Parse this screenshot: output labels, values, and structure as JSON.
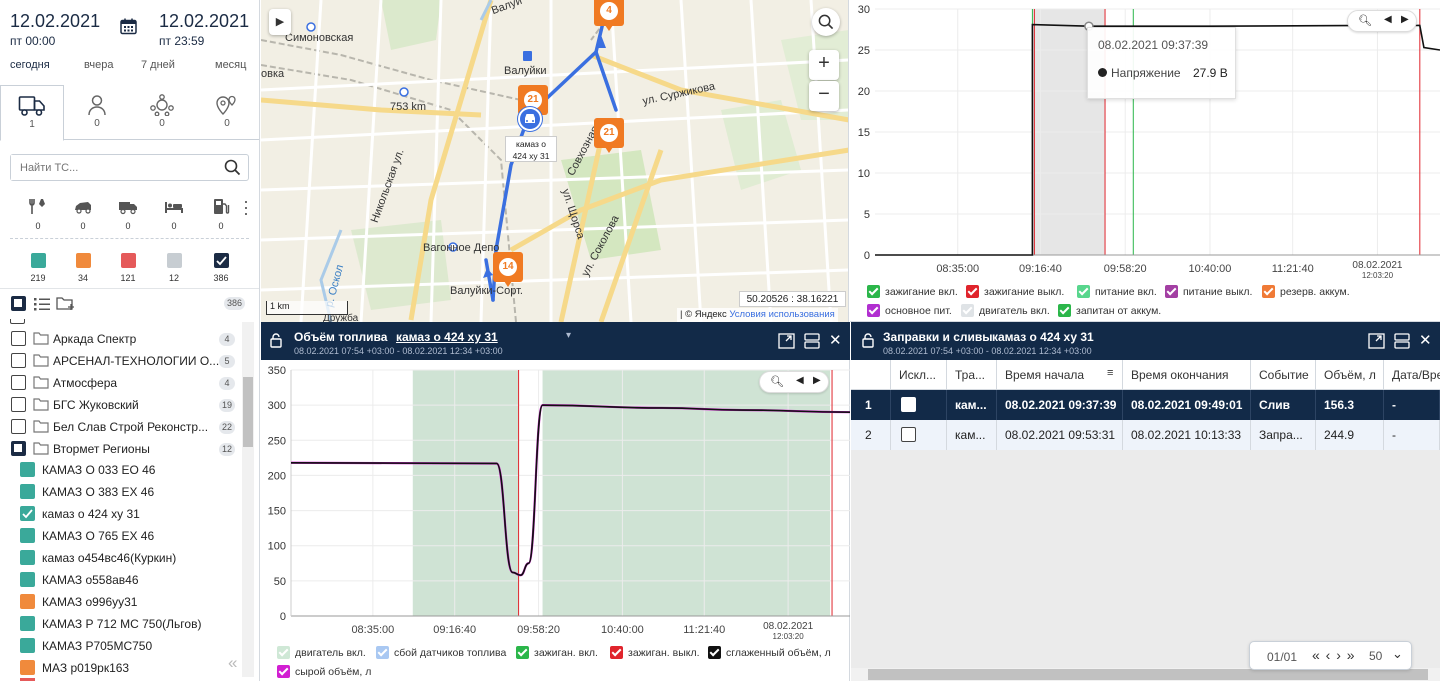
{
  "period": {
    "from_date": "12.02.2021",
    "from_time": "пт 00:00",
    "to_date": "12.02.2021",
    "to_time": "пт 23:59",
    "quick": [
      "сегодня",
      "вчера",
      "7 дней",
      "месяц"
    ]
  },
  "tabs": [
    {
      "icon": "truck-icon",
      "count": "1"
    },
    {
      "icon": "person-icon",
      "count": "0"
    },
    {
      "icon": "group-icon",
      "count": "0"
    },
    {
      "icon": "location-icon",
      "count": "0"
    }
  ],
  "search": {
    "placeholder": "Найти ТС..."
  },
  "filters": [
    {
      "icon": "service-icon",
      "count": "0"
    },
    {
      "icon": "car-icon",
      "count": "0"
    },
    {
      "icon": "truck-small-icon",
      "count": "0"
    },
    {
      "icon": "bed-icon",
      "count": "0"
    },
    {
      "icon": "fuel-icon",
      "count": "0"
    }
  ],
  "status_counts": [
    {
      "color": "#3aa99a",
      "count": "219"
    },
    {
      "color": "#f08a3c",
      "count": "34"
    },
    {
      "color": "#e55a5a",
      "count": "121"
    },
    {
      "color": "#c7cdd2",
      "count": "12"
    },
    {
      "color": "#1b2b44",
      "count": "386"
    }
  ],
  "total_count": "386",
  "groups": [
    {
      "name": "Аркада Спектр",
      "count": "4"
    },
    {
      "name": "АРСЕНАЛ-ТЕХНОЛОГИИ О...",
      "count": "5"
    },
    {
      "name": "Атмосфера",
      "count": "4"
    },
    {
      "name": "БГС Жуковский",
      "count": "19"
    },
    {
      "name": "Бел Слав Строй Реконстр...",
      "count": "22"
    },
    {
      "name": "Втормет Регионы",
      "count": "12"
    }
  ],
  "vehicles": [
    {
      "name": "КАМАЗ О 033 ЕО 46",
      "color": "#3aa99a",
      "checked": false
    },
    {
      "name": "КАМАЗ О 383 ЕХ 46",
      "color": "#3aa99a",
      "checked": false
    },
    {
      "name": "камаз о 424 ху 31",
      "color": "#3aa99a",
      "checked": true
    },
    {
      "name": "КАМАЗ О 765 ЕХ 46",
      "color": "#3aa99a",
      "checked": false
    },
    {
      "name": "камаз о454вс46(Куркин)",
      "color": "#3aa99a",
      "checked": false
    },
    {
      "name": "КАМАЗ о558ав46",
      "color": "#3aa99a",
      "checked": false
    },
    {
      "name": "КАМАЗ о996уу31",
      "color": "#f08a3c",
      "checked": false
    },
    {
      "name": "КАМАЗ Р 712 МС 750(Льгов)",
      "color": "#3aa99a",
      "checked": false
    },
    {
      "name": "КАМАЗ Р705МС750",
      "color": "#3aa99a",
      "checked": false
    },
    {
      "name": "МАЗ р019рк163",
      "color": "#f08a3c",
      "checked": false
    }
  ],
  "map": {
    "labels": {
      "simonovskaya": "Симоновская",
      "valuyki": "Валуйки",
      "valuy": "Валуй",
      "km753": "753 km",
      "surzhikova": "ул. Суржикова",
      "nikolskaya": "Никольская ул.",
      "sovkhoznaya": "Совхозная",
      "shchorsa": "ул. Щорса",
      "sokolova": "ул. Соколова",
      "vagonnoe": "Вагонное Депо",
      "valuyki_sort": "Валуйки-Сорт.",
      "oskol": "р. Оскол",
      "ovka": "овка",
      "druzhba": "Дружба"
    },
    "markers": [
      "4",
      "21",
      "21",
      "14"
    ],
    "vehicle_label_line1": "камаз о",
    "vehicle_label_line2": "424 ху 31",
    "scale": "1 km",
    "coords": "50.20526 : 38.16221",
    "copyright": "| © Яндекс",
    "terms": "Условия использования"
  },
  "voltage_chart": {
    "tooltip_time": "08.02.2021  09:37:39",
    "tooltip_series": "Напряжение",
    "tooltip_value": "27.9 В",
    "legend": [
      {
        "label": "зажигание вкл.",
        "color": "#2bb64a"
      },
      {
        "label": "зажигание выкл.",
        "color": "#e0242c"
      },
      {
        "label": "питание вкл.",
        "color": "#58d68d"
      },
      {
        "label": "питание выкл.",
        "color": "#a33fa3"
      },
      {
        "label": "резерв. аккум.",
        "color": "#f07a36"
      },
      {
        "label": "основное пит.",
        "color": "#b12fd0"
      },
      {
        "label": "двигатель вкл.",
        "color": "#dfe3e6"
      },
      {
        "label": "запитан от аккум.",
        "color": "#2bb64a"
      }
    ]
  },
  "fuel_panel": {
    "title": "Объём топлива",
    "vehicle": "камаз о 424 ху 31",
    "subtitle": "08.02.2021 07:54 +03:00 - 08.02.2021 12:34 +03:00",
    "legend": [
      {
        "label": "двигатель вкл.",
        "color": "#cfe8d6"
      },
      {
        "label": "сбой датчиков топлива",
        "color": "#a9c8f2"
      },
      {
        "label": "зажиган. вкл.",
        "color": "#2bb64a"
      },
      {
        "label": "зажиган. выкл.",
        "color": "#e0242c"
      },
      {
        "label": "сглаженный объём, л",
        "color": "#111111"
      },
      {
        "label": "сырой объём, л",
        "color": "#d21fd2"
      }
    ]
  },
  "table_panel": {
    "title": "Заправки и сливы",
    "vehicle": "камаз о 424 ху 31",
    "subtitle": "08.02.2021 07:54 +03:00 - 08.02.2021 12:34 +03:00",
    "columns": [
      "Искл...",
      "Тра...",
      "Время начала",
      "Время окончания",
      "Событие",
      "Объём, л",
      "Дата/Вре"
    ],
    "rows": [
      {
        "n": "1",
        "tr": "кам...",
        "start": "08.02.2021 09:37:39",
        "end": "08.02.2021 09:49:01",
        "event": "Слив",
        "volume": "156.3",
        "date": "-"
      },
      {
        "n": "2",
        "tr": "кам...",
        "start": "08.02.2021 09:53:31",
        "end": "08.02.2021 10:13:33",
        "event": "Запра...",
        "volume": "244.9",
        "date": "-"
      }
    ],
    "pager": {
      "page": "01/01",
      "size": "50"
    }
  },
  "chart_data": [
    {
      "type": "line",
      "title": "",
      "xlabel": "",
      "ylabel": "",
      "ylim": [
        0,
        30
      ],
      "yticks": [
        0,
        5,
        10,
        15,
        20,
        25,
        30
      ],
      "xticks": [
        "08:35:00",
        "09:16:40",
        "09:58:20",
        "10:40:00",
        "11:21:40"
      ],
      "x_last_tick": {
        "date": "08.02.2021",
        "time": "12:03:20"
      },
      "series": [
        {
          "name": "Напряжение",
          "x": [
            "07:54",
            "09:12",
            "09:12",
            "09:40",
            "10:40",
            "12:00",
            "12:24",
            "12:26",
            "12:34"
          ],
          "values": [
            0,
            0,
            28.1,
            27.9,
            27.9,
            28.0,
            28.0,
            25.3,
            25.0
          ]
        }
      ],
      "bands": [
        {
          "from": "09:12",
          "to": "09:48",
          "label": "двигатель вкл."
        }
      ],
      "lines": [
        {
          "at": "09:12",
          "color": "#2bb64a"
        },
        {
          "at": "09:12",
          "color": "#e0242c"
        },
        {
          "at": "09:48",
          "color": "#e0242c"
        },
        {
          "at": "10:02",
          "color": "#2bb64a"
        },
        {
          "at": "12:24",
          "color": "#e0242c"
        }
      ]
    },
    {
      "type": "line",
      "title": "",
      "xlabel": "",
      "ylabel": "",
      "ylim": [
        0,
        350
      ],
      "yticks": [
        0,
        50,
        100,
        150,
        200,
        250,
        300,
        350
      ],
      "xticks": [
        "08:35:00",
        "09:16:40",
        "09:58:20",
        "10:40:00",
        "11:21:40"
      ],
      "x_last_tick": {
        "date": "08.02.2021",
        "time": "12:03:20"
      },
      "series": [
        {
          "name": "сглаженный объём, л",
          "x": [
            "07:54",
            "09:37",
            "09:45",
            "09:49",
            "09:53",
            "10:00",
            "11:00",
            "11:40",
            "12:34"
          ],
          "values": [
            218,
            217,
            62,
            58,
            75,
            300,
            296,
            293,
            290
          ]
        }
      ],
      "bands": [
        {
          "from": "08:55",
          "to": "09:48",
          "label": "двигатель вкл."
        },
        {
          "from": "10:00",
          "to": "12:24",
          "label": "двигатель вкл."
        }
      ],
      "lines": [
        {
          "at": "09:48",
          "color": "#e0242c"
        },
        {
          "at": "12:24",
          "color": "#e0242c"
        }
      ]
    }
  ]
}
